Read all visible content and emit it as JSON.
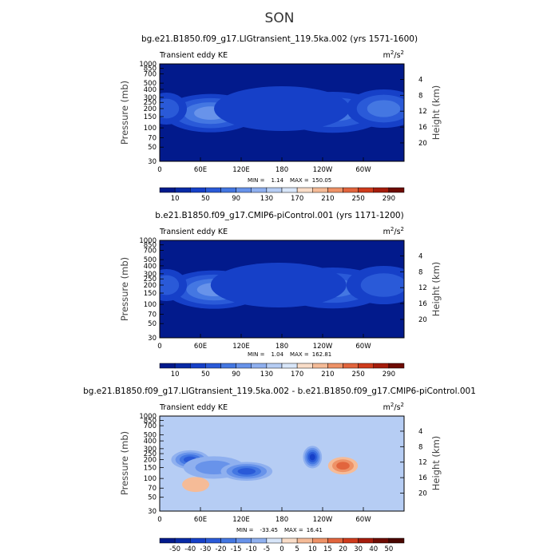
{
  "figure_title": "SON",
  "colors": {
    "blues": [
      "#021a8c",
      "#082aa6",
      "#1640c8",
      "#2a5ad8",
      "#4477e2",
      "#6893ea",
      "#8fb0ef",
      "#b6cdf4",
      "#d8e6f9"
    ],
    "warms": [
      "#f9ddc8",
      "#f5bb97",
      "#ee9267",
      "#e2653d",
      "#cf3b1c",
      "#a51c0c",
      "#6e0b02"
    ],
    "white": "#ffffff"
  },
  "chart_data": [
    {
      "type": "heatmap",
      "title": "bg.e21.B1850.f09_g17.LIGtransient_119.5ka.002 (yrs 1571-1600)",
      "left_label": "Transient eddy KE",
      "units": "m²/s²",
      "units_base": "m",
      "units_mid": "/s",
      "units_exp": "2",
      "xlabel": "",
      "ylabel": "Pressure  (mb)",
      "ylabel_right": "Height  (km)",
      "xticks": [
        "0",
        "60E",
        "120E",
        "180",
        "120W",
        "60W"
      ],
      "xtick_lon": [
        0,
        60,
        120,
        180,
        240,
        300
      ],
      "xlim": [
        0,
        360
      ],
      "yticks": [
        "30",
        "50",
        "70",
        "100",
        "150",
        "200",
        "250",
        "300",
        "400",
        "500",
        "700",
        "850",
        "1000"
      ],
      "ytick_p": [
        30,
        50,
        70,
        100,
        150,
        200,
        250,
        300,
        400,
        500,
        700,
        850,
        1000
      ],
      "ylim": [
        1000,
        30
      ],
      "right_ticks": [
        "4",
        "8",
        "12",
        "16",
        "20"
      ],
      "right_km": [
        4,
        8,
        12,
        16,
        20
      ],
      "min_label": "MIN =",
      "min_value": "1.14",
      "max_label": "MAX =",
      "max_value": "150.05",
      "colorbar_labels": [
        "10",
        "50",
        "90",
        "130",
        "170",
        "210",
        "250",
        "290"
      ],
      "colorbar_levels": [
        10,
        30,
        50,
        70,
        90,
        110,
        130,
        150,
        170,
        190,
        210,
        230,
        250,
        270,
        290
      ],
      "colorbar_colors": [
        "#021a8c",
        "#082aa6",
        "#1640c8",
        "#2a5ad8",
        "#4477e2",
        "#6893ea",
        "#8fb0ef",
        "#b6cdf4",
        "#d8e6f9",
        "#f9ddc8",
        "#f5bb97",
        "#ee9267",
        "#e2653d",
        "#cf3b1c",
        "#a51c0c",
        "#6e0b02"
      ],
      "features": [
        {
          "lon": 75,
          "p": 150,
          "value": 150,
          "lon_width": 32,
          "log_p_width": 0.12,
          "kind": "jet core"
        },
        {
          "lon": 75,
          "p": 170,
          "value": 95,
          "lon_width": 70,
          "log_p_width": 0.3,
          "kind": "jet"
        },
        {
          "lon": 255,
          "p": 160,
          "value": 130,
          "lon_width": 38,
          "log_p_width": 0.14,
          "kind": "jet core"
        },
        {
          "lon": 255,
          "p": 175,
          "value": 80,
          "lon_width": 80,
          "log_p_width": 0.32,
          "kind": "jet"
        },
        {
          "lon": 330,
          "p": 190,
          "value": 110,
          "lon_width": 28,
          "log_p_width": 0.14,
          "kind": "jet core"
        },
        {
          "lon": 330,
          "p": 200,
          "value": 70,
          "lon_width": 55,
          "log_p_width": 0.3,
          "kind": "jet"
        },
        {
          "lon": 10,
          "p": 200,
          "value": 60,
          "lon_width": 30,
          "log_p_width": 0.25,
          "kind": "jet"
        },
        {
          "lon": 180,
          "p": 200,
          "value": 45,
          "lon_width": 100,
          "log_p_width": 0.35,
          "kind": "broad"
        }
      ]
    },
    {
      "type": "heatmap",
      "title": "b.e21.B1850.f09_g17.CMIP6-piControl.001 (yrs 1171-1200)",
      "left_label": "Transient eddy KE",
      "units": "m²/s²",
      "units_base": "m",
      "units_mid": "/s",
      "units_exp": "2",
      "xlabel": "",
      "ylabel": "Pressure  (mb)",
      "ylabel_right": "Height  (km)",
      "xticks": [
        "0",
        "60E",
        "120E",
        "180",
        "120W",
        "60W"
      ],
      "xtick_lon": [
        0,
        60,
        120,
        180,
        240,
        300
      ],
      "xlim": [
        0,
        360
      ],
      "yticks": [
        "30",
        "50",
        "70",
        "100",
        "150",
        "200",
        "250",
        "300",
        "400",
        "500",
        "700",
        "850",
        "1000"
      ],
      "ytick_p": [
        30,
        50,
        70,
        100,
        150,
        200,
        250,
        300,
        400,
        500,
        700,
        850,
        1000
      ],
      "ylim": [
        1000,
        30
      ],
      "right_ticks": [
        "4",
        "8",
        "12",
        "16",
        "20"
      ],
      "right_km": [
        4,
        8,
        12,
        16,
        20
      ],
      "min_label": "MIN =",
      "min_value": "1.04",
      "max_label": "MAX =",
      "max_value": "162.81",
      "colorbar_labels": [
        "10",
        "50",
        "90",
        "130",
        "170",
        "210",
        "250",
        "290"
      ],
      "colorbar_levels": [
        10,
        30,
        50,
        70,
        90,
        110,
        130,
        150,
        170,
        190,
        210,
        230,
        250,
        270,
        290
      ],
      "colorbar_colors": [
        "#021a8c",
        "#082aa6",
        "#1640c8",
        "#2a5ad8",
        "#4477e2",
        "#6893ea",
        "#8fb0ef",
        "#b6cdf4",
        "#d8e6f9",
        "#f9ddc8",
        "#f5bb97",
        "#ee9267",
        "#e2653d",
        "#cf3b1c",
        "#a51c0c",
        "#6e0b02"
      ],
      "features": [
        {
          "lon": 80,
          "p": 150,
          "value": 162,
          "lon_width": 32,
          "log_p_width": 0.12,
          "kind": "jet core"
        },
        {
          "lon": 80,
          "p": 170,
          "value": 100,
          "lon_width": 72,
          "log_p_width": 0.3,
          "kind": "jet"
        },
        {
          "lon": 255,
          "p": 165,
          "value": 130,
          "lon_width": 36,
          "log_p_width": 0.14,
          "kind": "jet core"
        },
        {
          "lon": 255,
          "p": 180,
          "value": 80,
          "lon_width": 80,
          "log_p_width": 0.32,
          "kind": "jet"
        },
        {
          "lon": 330,
          "p": 195,
          "value": 100,
          "lon_width": 26,
          "log_p_width": 0.14,
          "kind": "jet core"
        },
        {
          "lon": 330,
          "p": 200,
          "value": 65,
          "lon_width": 55,
          "log_p_width": 0.3,
          "kind": "jet"
        },
        {
          "lon": 10,
          "p": 200,
          "value": 55,
          "lon_width": 30,
          "log_p_width": 0.25,
          "kind": "jet"
        },
        {
          "lon": 175,
          "p": 200,
          "value": 45,
          "lon_width": 100,
          "log_p_width": 0.35,
          "kind": "broad"
        }
      ]
    },
    {
      "type": "heatmap",
      "title": "bg.e21.B1850.f09_g17.LIGtransient_119.5ka.002 - b.e21.B1850.f09_g17.CMIP6-piControl.001",
      "left_label": "Transient eddy KE",
      "units": "m²/s²",
      "units_base": "m",
      "units_mid": "/s",
      "units_exp": "2",
      "xlabel": "",
      "ylabel": "Pressure  (mb)",
      "ylabel_right": "Height  (km)",
      "xticks": [
        "0",
        "60E",
        "120E",
        "180",
        "120W",
        "60W"
      ],
      "xtick_lon": [
        0,
        60,
        120,
        180,
        240,
        300
      ],
      "xlim": [
        0,
        360
      ],
      "yticks": [
        "30",
        "50",
        "70",
        "100",
        "150",
        "200",
        "250",
        "300",
        "400",
        "500",
        "700",
        "850",
        "1000"
      ],
      "ytick_p": [
        30,
        50,
        70,
        100,
        150,
        200,
        250,
        300,
        400,
        500,
        700,
        850,
        1000
      ],
      "ylim": [
        1000,
        30
      ],
      "right_ticks": [
        "4",
        "8",
        "12",
        "16",
        "20"
      ],
      "right_km": [
        4,
        8,
        12,
        16,
        20
      ],
      "min_label": "MIN =",
      "min_value": "-33.45",
      "max_label": "MAX =",
      "max_value": "16.41",
      "colorbar_labels": [
        "-50",
        "-40",
        "-30",
        "-20",
        "-15",
        "-10",
        "-5",
        "0",
        "5",
        "10",
        "15",
        "20",
        "30",
        "40",
        "50"
      ],
      "colorbar_levels": [
        -50,
        -40,
        -30,
        -20,
        -15,
        -10,
        -5,
        0,
        5,
        10,
        15,
        20,
        30,
        40,
        50
      ],
      "colorbar_colors": [
        "#021a8c",
        "#082aa6",
        "#1640c8",
        "#2a5ad8",
        "#4477e2",
        "#6893ea",
        "#8fb0ef",
        "#d8e6f9",
        "#f9ddc8",
        "#f5bb97",
        "#ee9267",
        "#e2653d",
        "#cf3b1c",
        "#a51c0c",
        "#6e0b02",
        "#4a0600"
      ],
      "features": [
        {
          "lon": 45,
          "p": 200,
          "value": -22,
          "lon_width": 28,
          "log_p_width": 0.15,
          "kind": "negative"
        },
        {
          "lon": 80,
          "p": 150,
          "value": -12,
          "lon_width": 45,
          "log_p_width": 0.18,
          "kind": "negative"
        },
        {
          "lon": 128,
          "p": 130,
          "value": -20,
          "lon_width": 38,
          "log_p_width": 0.15,
          "kind": "negative"
        },
        {
          "lon": 225,
          "p": 220,
          "value": -33,
          "lon_width": 14,
          "log_p_width": 0.18,
          "kind": "negative core"
        },
        {
          "lon": 270,
          "p": 160,
          "value": 16,
          "lon_width": 22,
          "log_p_width": 0.14,
          "kind": "positive"
        },
        {
          "lon": 53,
          "p": 80,
          "value": 8,
          "lon_width": 20,
          "log_p_width": 0.12,
          "kind": "positive"
        }
      ]
    }
  ]
}
